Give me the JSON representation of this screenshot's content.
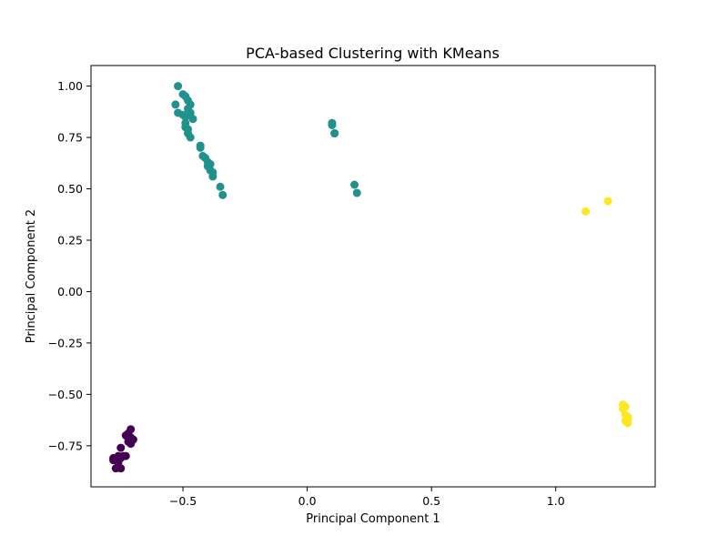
{
  "chart_data": {
    "type": "scatter",
    "title": "PCA-based Clustering with KMeans",
    "xlabel": "Principal Component 1",
    "ylabel": "Principal Component 2",
    "xlim": [
      -0.87,
      1.4
    ],
    "ylim": [
      -0.95,
      1.1
    ],
    "grid": false,
    "legend": "none",
    "x_ticks": [
      {
        "value": -0.5,
        "label": "−0.5"
      },
      {
        "value": 0.0,
        "label": "0.0"
      },
      {
        "value": 0.5,
        "label": "0.5"
      },
      {
        "value": 1.0,
        "label": "1.0"
      }
    ],
    "y_ticks": [
      {
        "value": -0.75,
        "label": "−0.75"
      },
      {
        "value": -0.5,
        "label": "−0.50"
      },
      {
        "value": -0.25,
        "label": "−0.25"
      },
      {
        "value": 0.0,
        "label": "0.00"
      },
      {
        "value": 0.25,
        "label": "0.25"
      },
      {
        "value": 0.5,
        "label": "0.50"
      },
      {
        "value": 0.75,
        "label": "0.75"
      },
      {
        "value": 1.0,
        "label": "1.00"
      }
    ],
    "series": [
      {
        "cluster": 0,
        "color": "#440154",
        "points": [
          [
            -0.71,
            -0.67
          ],
          [
            -0.72,
            -0.69
          ],
          [
            -0.71,
            -0.71
          ],
          [
            -0.7,
            -0.72
          ],
          [
            -0.72,
            -0.73
          ],
          [
            -0.73,
            -0.7
          ],
          [
            -0.71,
            -0.74
          ],
          [
            -0.75,
            -0.76
          ],
          [
            -0.74,
            -0.8
          ],
          [
            -0.75,
            -0.81
          ],
          [
            -0.77,
            -0.81
          ],
          [
            -0.76,
            -0.8
          ],
          [
            -0.78,
            -0.81
          ],
          [
            -0.76,
            -0.83
          ],
          [
            -0.77,
            -0.82
          ],
          [
            -0.76,
            -0.85
          ],
          [
            -0.77,
            -0.86
          ],
          [
            -0.75,
            -0.86
          ],
          [
            -0.78,
            -0.82
          ],
          [
            -0.73,
            -0.8
          ]
        ]
      },
      {
        "cluster": 1,
        "color": "#21918c",
        "points": [
          [
            -0.52,
            1.0
          ],
          [
            -0.5,
            0.96
          ],
          [
            -0.49,
            0.95
          ],
          [
            -0.48,
            0.93
          ],
          [
            -0.47,
            0.91
          ],
          [
            -0.53,
            0.91
          ],
          [
            -0.48,
            0.89
          ],
          [
            -0.47,
            0.87
          ],
          [
            -0.52,
            0.87
          ],
          [
            -0.5,
            0.86
          ],
          [
            -0.49,
            0.85
          ],
          [
            -0.46,
            0.84
          ],
          [
            -0.49,
            0.82
          ],
          [
            -0.49,
            0.8
          ],
          [
            -0.48,
            0.79
          ],
          [
            -0.48,
            0.77
          ],
          [
            -0.47,
            0.75
          ],
          [
            -0.43,
            0.71
          ],
          [
            -0.43,
            0.7
          ],
          [
            -0.42,
            0.66
          ],
          [
            -0.41,
            0.65
          ],
          [
            -0.4,
            0.63
          ],
          [
            -0.39,
            0.62
          ],
          [
            -0.4,
            0.61
          ],
          [
            -0.39,
            0.59
          ],
          [
            -0.38,
            0.58
          ],
          [
            -0.38,
            0.56
          ],
          [
            -0.35,
            0.51
          ],
          [
            -0.34,
            0.47
          ],
          [
            0.1,
            0.82
          ],
          [
            0.1,
            0.81
          ],
          [
            0.11,
            0.77
          ],
          [
            0.11,
            0.77
          ],
          [
            0.19,
            0.52
          ],
          [
            0.2,
            0.48
          ]
        ]
      },
      {
        "cluster": 2,
        "color": "#fde725",
        "points": [
          [
            1.12,
            0.39
          ],
          [
            1.21,
            0.44
          ],
          [
            1.27,
            -0.55
          ],
          [
            1.28,
            -0.56
          ],
          [
            1.27,
            -0.57
          ],
          [
            1.28,
            -0.6
          ],
          [
            1.29,
            -0.61
          ],
          [
            1.29,
            -0.62
          ],
          [
            1.28,
            -0.63
          ],
          [
            1.29,
            -0.64
          ]
        ]
      }
    ]
  }
}
